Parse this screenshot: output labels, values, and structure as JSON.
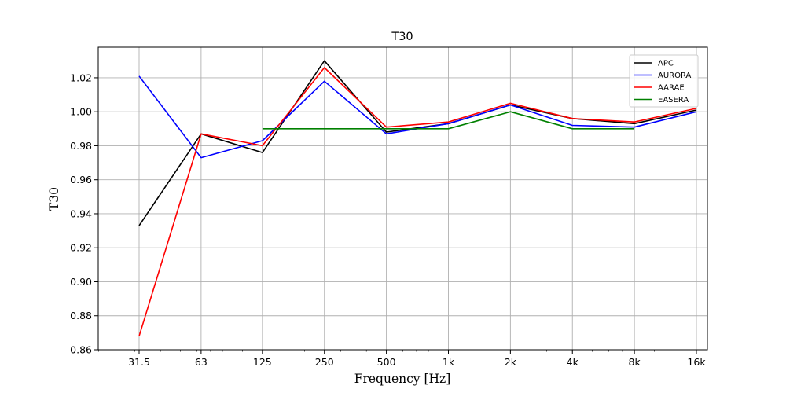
{
  "chart_data": {
    "type": "line",
    "title": "T30",
    "xlabel": "Frequency [Hz]",
    "ylabel": "T30",
    "x_scale": "log",
    "categories": [
      "31.5",
      "63",
      "125",
      "250",
      "500",
      "1k",
      "2k",
      "4k",
      "8k",
      "16k"
    ],
    "x": [
      31.5,
      63,
      125,
      250,
      500,
      1000,
      2000,
      4000,
      8000,
      16000
    ],
    "ylim": [
      0.86,
      1.038
    ],
    "yticks": [
      "0.86",
      "0.88",
      "0.90",
      "0.92",
      "0.94",
      "0.96",
      "0.98",
      "1.00",
      "1.02"
    ],
    "grid": true,
    "legend_position": "top-right",
    "series": [
      {
        "name": "APC",
        "color": "#000000",
        "values": [
          0.933,
          0.987,
          0.976,
          1.03,
          0.988,
          0.993,
          1.004,
          0.996,
          0.993,
          1.001
        ]
      },
      {
        "name": "AURORA",
        "color": "#0000ff",
        "values": [
          1.021,
          0.973,
          0.983,
          1.018,
          0.987,
          0.993,
          1.004,
          0.992,
          0.991,
          1.0
        ]
      },
      {
        "name": "AARAE",
        "color": "#ff0000",
        "values": [
          0.868,
          0.987,
          0.98,
          1.026,
          0.991,
          0.994,
          1.005,
          0.996,
          0.994,
          1.002
        ]
      },
      {
        "name": "EASERA",
        "color": "#008000",
        "values": [
          null,
          null,
          0.99,
          0.99,
          0.99,
          0.99,
          1.0,
          0.99,
          0.99,
          null
        ]
      }
    ]
  }
}
